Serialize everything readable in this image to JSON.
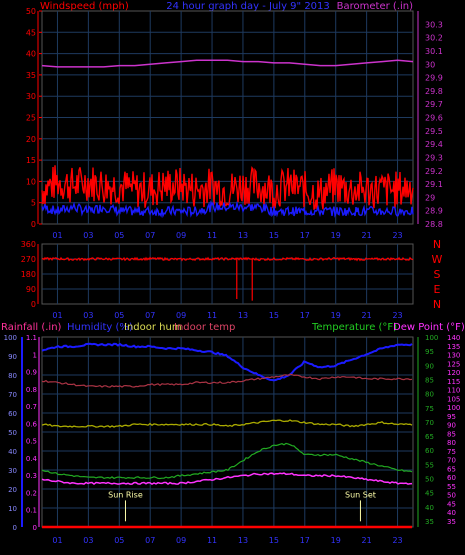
{
  "header": {
    "left_title": "Windspeed (mph)",
    "center_title": "24 hour graph day - July 9\" 2013",
    "right_title": "Barometer (.in)"
  },
  "colors": {
    "background": "#000000",
    "grid": "#1e3a5f",
    "wind": "#ff0000",
    "gust_avg": "#1b1bff",
    "baro": "#cc33cc",
    "direction": "#ff0000",
    "rain": "#ff0000",
    "humidity": "#1b1bff",
    "indoor_hum": "#aaaa00",
    "indoor_temp": "#aa3344",
    "temperature": "#22aa22",
    "dew_point": "#ff33ff",
    "sun_label": "#ffffaa"
  },
  "x_ticks": [
    "01",
    "03",
    "05",
    "07",
    "09",
    "11",
    "13",
    "15",
    "17",
    "19",
    "21",
    "23"
  ],
  "chart_data": [
    {
      "type": "line",
      "title": "24 hour graph day - July 9\" 2013",
      "ylabel": "Windspeed (mph)",
      "y2label": "Barometer (.in)",
      "ylim": [
        0,
        50
      ],
      "y_ticks": [
        "0",
        "5",
        "10",
        "15",
        "20",
        "25",
        "30",
        "35",
        "40",
        "45",
        "50"
      ],
      "y2lim": [
        28.8,
        30.4
      ],
      "y2_ticks": [
        "28.8",
        "28.9",
        "29",
        "29.1",
        "29.2",
        "29.3",
        "29.4",
        "29.5",
        "29.6",
        "29.7",
        "29.8",
        "29.9",
        "30",
        "30.1",
        "30.2",
        "30.3"
      ],
      "hours": [
        0,
        1,
        2,
        3,
        4,
        5,
        6,
        7,
        8,
        9,
        10,
        11,
        12,
        13,
        14,
        15,
        16,
        17,
        18,
        19,
        20,
        21,
        22,
        23,
        24
      ],
      "series": [
        {
          "name": "Windspeed",
          "values": [
            8,
            10,
            9,
            10,
            9,
            9,
            8,
            8,
            9,
            9,
            8,
            9,
            8,
            9,
            9,
            8,
            9,
            8,
            7,
            9,
            8,
            8,
            8,
            8,
            9
          ]
        },
        {
          "name": "Average",
          "values": [
            4,
            3,
            4,
            3,
            4,
            3,
            3,
            3,
            3,
            3,
            3,
            4,
            4,
            4,
            4,
            3,
            3,
            3,
            3,
            3,
            3,
            3,
            3,
            3,
            3
          ]
        },
        {
          "name": "Barometer",
          "values": [
            29.99,
            29.98,
            29.98,
            29.98,
            29.98,
            29.99,
            29.99,
            30.0,
            30.01,
            30.02,
            30.03,
            30.03,
            30.03,
            30.02,
            30.02,
            30.01,
            30.01,
            30.0,
            29.99,
            29.99,
            30.0,
            30.01,
            30.02,
            30.03,
            30.02
          ]
        }
      ]
    },
    {
      "type": "scatter",
      "ylabel": "Wind direction",
      "ylim": [
        0,
        360
      ],
      "y_ticks": [
        "0",
        "90",
        "180",
        "270",
        "360"
      ],
      "compass": [
        "N",
        "W",
        "S",
        "E",
        "N"
      ],
      "hours": [
        0,
        1,
        2,
        3,
        4,
        5,
        6,
        7,
        8,
        9,
        10,
        11,
        12,
        13,
        14,
        15,
        16,
        17,
        18,
        19,
        20,
        21,
        22,
        23,
        24
      ],
      "series": [
        {
          "name": "Direction",
          "values": [
            270,
            272,
            268,
            270,
            271,
            269,
            270,
            272,
            270,
            268,
            270,
            271,
            270,
            272,
            268,
            270,
            271,
            269,
            270,
            272,
            270,
            268,
            270,
            271,
            270
          ]
        }
      ],
      "spikes": [
        {
          "hour": 12.6,
          "value": 30
        },
        {
          "hour": 13.6,
          "value": 20
        }
      ]
    },
    {
      "type": "line",
      "legend": [
        "Rainfall (.in)",
        "Humidity (%)",
        "Indoor hum",
        "Indoor temp",
        "Temperature (°F)",
        "Dew Point (°F)"
      ],
      "ylim": [
        0,
        100
      ],
      "y_ticks": [
        "0",
        "10",
        "20",
        "30",
        "40",
        "50",
        "60",
        "70",
        "80",
        "90",
        "100"
      ],
      "y_rain_ticks": [
        "0",
        "0.1",
        "0.2",
        "0.3",
        "0.4",
        "0.5",
        "0.6",
        "0.7",
        "0.8",
        "0.9",
        "1",
        "1.1"
      ],
      "y2lim": [
        30,
        100
      ],
      "y2_ticks": [
        "35",
        "40",
        "45",
        "50",
        "55",
        "60",
        "65",
        "70",
        "75",
        "80",
        "85",
        "90",
        "95",
        "100"
      ],
      "y3_ticks": [
        "35",
        "40",
        "45",
        "50",
        "55",
        "60",
        "65",
        "70",
        "75",
        "80",
        "85",
        "90",
        "95",
        "100",
        "105",
        "110",
        "115",
        "120",
        "125",
        "130",
        "135",
        "140"
      ],
      "hours": [
        0,
        1,
        2,
        3,
        4,
        5,
        6,
        7,
        8,
        9,
        10,
        11,
        12,
        13,
        14,
        15,
        16,
        17,
        18,
        19,
        20,
        21,
        22,
        23,
        24
      ],
      "series": [
        {
          "name": "Rainfall",
          "values": [
            0,
            0,
            0,
            0,
            0,
            0,
            0,
            0,
            0,
            0,
            0,
            0,
            0,
            0,
            0,
            0,
            0,
            0,
            0,
            0,
            0,
            0,
            0,
            0,
            0
          ]
        },
        {
          "name": "Humidity",
          "values": [
            93,
            95,
            95,
            96,
            96,
            96,
            95,
            95,
            94,
            94,
            93,
            92,
            90,
            84,
            80,
            77,
            80,
            87,
            84,
            85,
            88,
            91,
            94,
            96,
            96
          ]
        },
        {
          "name": "Indoor hum",
          "values": [
            54,
            53,
            53,
            53,
            53,
            53,
            54,
            54,
            54,
            54,
            54,
            54,
            53,
            54,
            55,
            56,
            56,
            55,
            54,
            54,
            53,
            54,
            55,
            54,
            54
          ]
        },
        {
          "name": "Indoor temp",
          "values": [
            77,
            76,
            75,
            74,
            74,
            74,
            74,
            75,
            75,
            75,
            76,
            76,
            76,
            77,
            78,
            79,
            80,
            79,
            78,
            79,
            79,
            78,
            78,
            78,
            78
          ]
        },
        {
          "name": "Temperature",
          "values": [
            30,
            28,
            27,
            26,
            26,
            26,
            26,
            26,
            26,
            27,
            28,
            29,
            30,
            35,
            40,
            43,
            44,
            38,
            38,
            38,
            36,
            34,
            32,
            30,
            29
          ]
        },
        {
          "name": "Dew Point",
          "values": [
            25,
            24,
            23,
            23,
            23,
            23,
            23,
            23,
            23,
            23,
            24,
            25,
            26,
            27,
            28,
            28,
            28,
            27,
            27,
            27,
            26,
            25,
            24,
            23,
            23
          ]
        }
      ],
      "annotations": [
        {
          "label": "Sun Rise",
          "hour": 5.4
        },
        {
          "label": "Sun Set",
          "hour": 20.6
        }
      ]
    }
  ]
}
